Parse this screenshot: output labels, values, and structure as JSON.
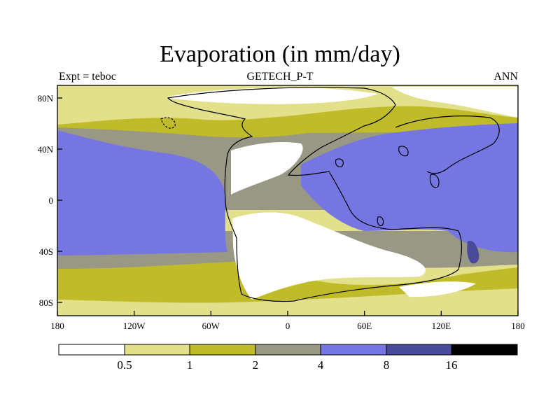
{
  "title": "Evaporation (in mm/day)",
  "left_label": "Expt = teboc",
  "center_label": "GETECH_P-T",
  "right_label": "ANN",
  "x_ticks": [
    "180",
    "120W",
    "60W",
    "0",
    "60E",
    "120E",
    "180"
  ],
  "y_ticks": [
    "80N",
    "40N",
    "0",
    "40S",
    "80S"
  ],
  "colorbar": {
    "labels": [
      "0.5",
      "1",
      "2",
      "4",
      "8",
      "16"
    ],
    "colors": [
      "#ffffff",
      "#e2e08a",
      "#c0bb28",
      "#989885",
      "#7676e2",
      "#4a4a9a",
      "#000000"
    ]
  }
}
